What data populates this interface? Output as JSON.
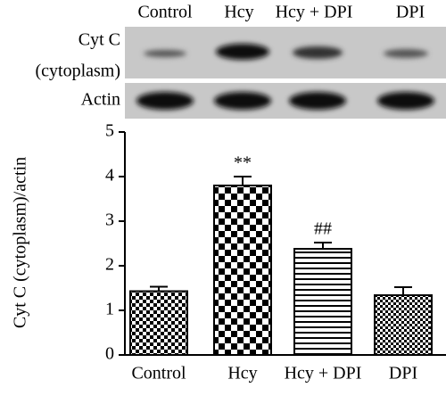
{
  "blot": {
    "lanes": [
      "Control",
      "Hcy",
      "Hcy + DPI",
      "DPI"
    ],
    "labels": [
      "Cyt C",
      "(cytoplasm)",
      "Actin"
    ]
  },
  "chart_data": {
    "type": "bar",
    "ylabel": "Cyt C (cytoplasm)/actin",
    "categories": [
      "Control",
      "Hcy",
      "Hcy + DPI",
      "DPI"
    ],
    "values": [
      1.43,
      3.8,
      2.38,
      1.34
    ],
    "errors": [
      0.1,
      0.2,
      0.14,
      0.18
    ],
    "significance": [
      null,
      "**",
      "##",
      null
    ],
    "ylim": [
      0,
      5
    ],
    "yticks": [
      0,
      1,
      2,
      3,
      4,
      5
    ],
    "color": "#000000"
  }
}
